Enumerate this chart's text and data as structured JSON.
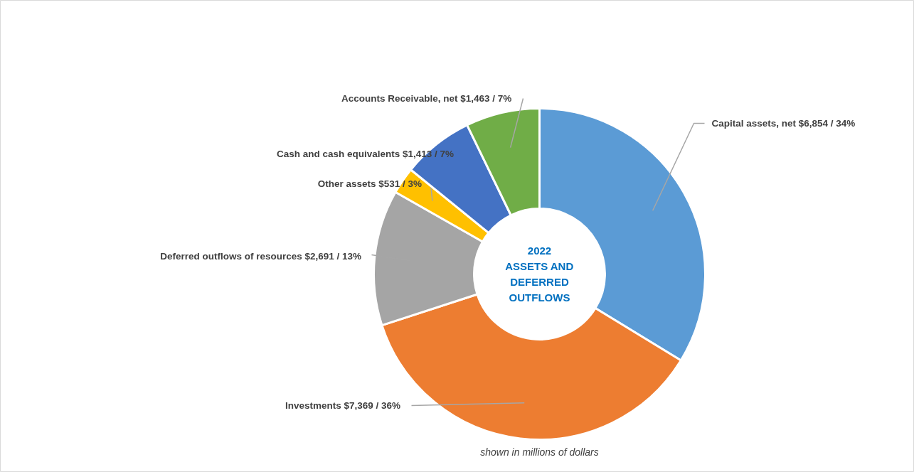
{
  "chart_data": {
    "type": "donut",
    "title": "2022\nASSETS AND\nDEFERRED\nOUTFLOWS",
    "categories": [
      "Capital assets, net",
      "Investments",
      "Deferred outflows of resources",
      "Other assets",
      "Cash and cash equivalents",
      "Accounts Receivable, net"
    ],
    "values": [
      6854,
      7369,
      2691,
      531,
      1413,
      1463
    ],
    "colors": [
      "#5b9bd5",
      "#ed7d31",
      "#a5a5a5",
      "#ffc000",
      "#4472c4",
      "#70ad47"
    ],
    "value_labels": [
      "$6,854   / 34%",
      "$7,369  / 36%",
      "$2,691  / 13%",
      "$531 /  3%",
      "$1,413  / 7%",
      "$1,463  /  7%"
    ],
    "annotations": [
      "shown in millions of dollars"
    ]
  }
}
